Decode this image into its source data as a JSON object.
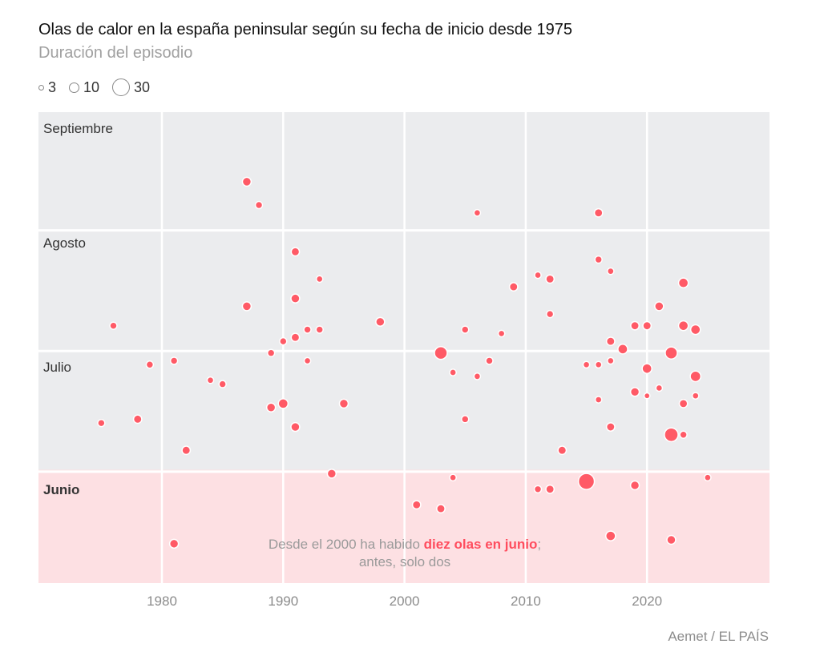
{
  "chart_data": {
    "type": "scatter",
    "title": "Olas de calor en la españa peninsular según su fecha de inicio desde 1975",
    "subtitle": "Duración del episodio",
    "size_legend": {
      "values": [
        3,
        10,
        30
      ],
      "labels": [
        "3",
        "10",
        "30"
      ]
    },
    "x_ticks": [
      "1980",
      "1990",
      "2000",
      "2010",
      "2020"
    ],
    "xlim": [
      1972,
      2032
    ],
    "y_bands": [
      {
        "label": "Septiembre",
        "highlight": false
      },
      {
        "label": "Agosto",
        "highlight": false
      },
      {
        "label": "Julio",
        "highlight": false
      },
      {
        "label": "Junio",
        "highlight": true
      }
    ],
    "ylim": [
      "06-01",
      "09-30"
    ],
    "grid": true,
    "colors": {
      "point": "#ff5a66",
      "highlight_band": "#fde0e3",
      "band": "#ebecee",
      "accent_text": "#ff4d5e"
    },
    "annotation": {
      "before": "Desde el 2000 ha habido ",
      "highlight": "diez olas en junio",
      "after": ";",
      "line2": "antes, solo dos"
    },
    "source": "Aemet / EL PAÍS",
    "points": [
      {
        "year": 1987,
        "start": "09-13",
        "days": 9
      },
      {
        "year": 1988,
        "start": "09-07",
        "days": 6
      },
      {
        "year": 2006,
        "start": "09-05",
        "days": 5
      },
      {
        "year": 2016,
        "start": "09-05",
        "days": 8
      },
      {
        "year": 1991,
        "start": "08-26",
        "days": 8
      },
      {
        "year": 2016,
        "start": "08-24",
        "days": 6
      },
      {
        "year": 1993,
        "start": "08-19",
        "days": 5
      },
      {
        "year": 2011,
        "start": "08-20",
        "days": 5
      },
      {
        "year": 2012,
        "start": "08-19",
        "days": 8
      },
      {
        "year": 2017,
        "start": "08-21",
        "days": 5
      },
      {
        "year": 2023,
        "start": "08-18",
        "days": 11
      },
      {
        "year": 2009,
        "start": "08-17",
        "days": 8
      },
      {
        "year": 1987,
        "start": "08-12",
        "days": 9
      },
      {
        "year": 1991,
        "start": "08-14",
        "days": 9
      },
      {
        "year": 2021,
        "start": "08-12",
        "days": 9
      },
      {
        "year": 2012,
        "start": "08-10",
        "days": 6
      },
      {
        "year": 1976,
        "start": "08-07",
        "days": 6
      },
      {
        "year": 1998,
        "start": "08-08",
        "days": 9
      },
      {
        "year": 1992,
        "start": "08-06",
        "days": 6
      },
      {
        "year": 1993,
        "start": "08-06",
        "days": 6
      },
      {
        "year": 2005,
        "start": "08-06",
        "days": 6
      },
      {
        "year": 2008,
        "start": "08-05",
        "days": 5
      },
      {
        "year": 2019,
        "start": "08-07",
        "days": 8
      },
      {
        "year": 2020,
        "start": "08-07",
        "days": 8
      },
      {
        "year": 2023,
        "start": "08-07",
        "days": 11
      },
      {
        "year": 2024,
        "start": "08-06",
        "days": 11
      },
      {
        "year": 1991,
        "start": "08-04",
        "days": 8
      },
      {
        "year": 1990,
        "start": "08-03",
        "days": 6
      },
      {
        "year": 2017,
        "start": "08-03",
        "days": 8
      },
      {
        "year": 1989,
        "start": "07-31",
        "days": 6
      },
      {
        "year": 2003,
        "start": "07-31",
        "days": 19
      },
      {
        "year": 2018,
        "start": "08-01",
        "days": 11
      },
      {
        "year": 2022,
        "start": "07-31",
        "days": 17
      },
      {
        "year": 1979,
        "start": "07-28",
        "days": 6
      },
      {
        "year": 1981,
        "start": "07-29",
        "days": 6
      },
      {
        "year": 1992,
        "start": "07-29",
        "days": 5
      },
      {
        "year": 2007,
        "start": "07-29",
        "days": 6
      },
      {
        "year": 2015,
        "start": "07-28",
        "days": 5
      },
      {
        "year": 2016,
        "start": "07-28",
        "days": 5
      },
      {
        "year": 2017,
        "start": "07-29",
        "days": 5
      },
      {
        "year": 2004,
        "start": "07-26",
        "days": 5
      },
      {
        "year": 2006,
        "start": "07-25",
        "days": 5
      },
      {
        "year": 2020,
        "start": "07-27",
        "days": 11
      },
      {
        "year": 2024,
        "start": "07-25",
        "days": 13
      },
      {
        "year": 1984,
        "start": "07-24",
        "days": 5
      },
      {
        "year": 1985,
        "start": "07-23",
        "days": 6
      },
      {
        "year": 2021,
        "start": "07-22",
        "days": 5
      },
      {
        "year": 2019,
        "start": "07-21",
        "days": 9
      },
      {
        "year": 2020,
        "start": "07-20",
        "days": 4
      },
      {
        "year": 2024,
        "start": "07-20",
        "days": 5
      },
      {
        "year": 2016,
        "start": "07-19",
        "days": 5
      },
      {
        "year": 1990,
        "start": "07-18",
        "days": 11
      },
      {
        "year": 1995,
        "start": "07-18",
        "days": 9
      },
      {
        "year": 1989,
        "start": "07-17",
        "days": 9
      },
      {
        "year": 2023,
        "start": "07-18",
        "days": 8
      },
      {
        "year": 1975,
        "start": "07-13",
        "days": 6
      },
      {
        "year": 1978,
        "start": "07-14",
        "days": 8
      },
      {
        "year": 2005,
        "start": "07-14",
        "days": 6
      },
      {
        "year": 1991,
        "start": "07-12",
        "days": 9
      },
      {
        "year": 2017,
        "start": "07-12",
        "days": 8
      },
      {
        "year": 2022,
        "start": "07-10",
        "days": 22
      },
      {
        "year": 2023,
        "start": "07-10",
        "days": 6
      },
      {
        "year": 1982,
        "start": "07-06",
        "days": 8
      },
      {
        "year": 2013,
        "start": "07-06",
        "days": 8
      },
      {
        "year": 1994,
        "start": "06-30",
        "days": 9
      },
      {
        "year": 2004,
        "start": "06-29",
        "days": 5
      },
      {
        "year": 2025,
        "start": "06-29",
        "days": 5
      },
      {
        "year": 2015,
        "start": "06-28",
        "days": 30
      },
      {
        "year": 2019,
        "start": "06-27",
        "days": 9
      },
      {
        "year": 2011,
        "start": "06-26",
        "days": 6
      },
      {
        "year": 2012,
        "start": "06-26",
        "days": 8
      },
      {
        "year": 2001,
        "start": "06-22",
        "days": 8
      },
      {
        "year": 2003,
        "start": "06-21",
        "days": 8
      },
      {
        "year": 2017,
        "start": "06-14",
        "days": 11
      },
      {
        "year": 2022,
        "start": "06-13",
        "days": 9
      },
      {
        "year": 1981,
        "start": "06-12",
        "days": 9
      }
    ]
  }
}
